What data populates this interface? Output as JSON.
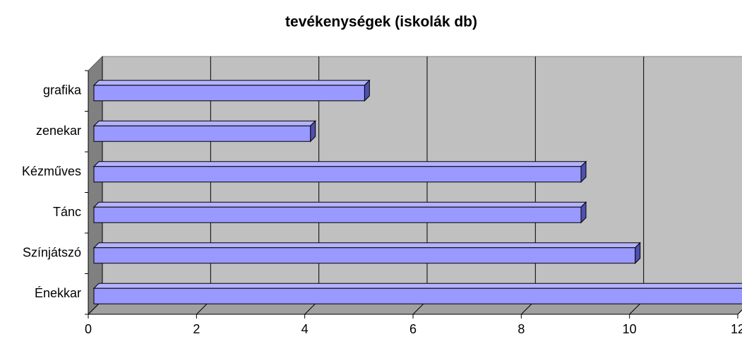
{
  "chart_data": {
    "type": "bar3d",
    "orientation": "horizontal",
    "title": "tevékenységek (iskolák db)",
    "categories": [
      "Énekkar",
      "Színjátszó",
      "Tánc",
      "Kézműves",
      "zenekar",
      "grafika"
    ],
    "values": [
      12,
      10,
      9,
      9,
      4,
      5
    ],
    "color": "#9999ff",
    "xlim": [
      0,
      12
    ],
    "xticks": [
      0,
      2,
      4,
      6,
      8,
      10,
      12
    ],
    "grid": true
  }
}
